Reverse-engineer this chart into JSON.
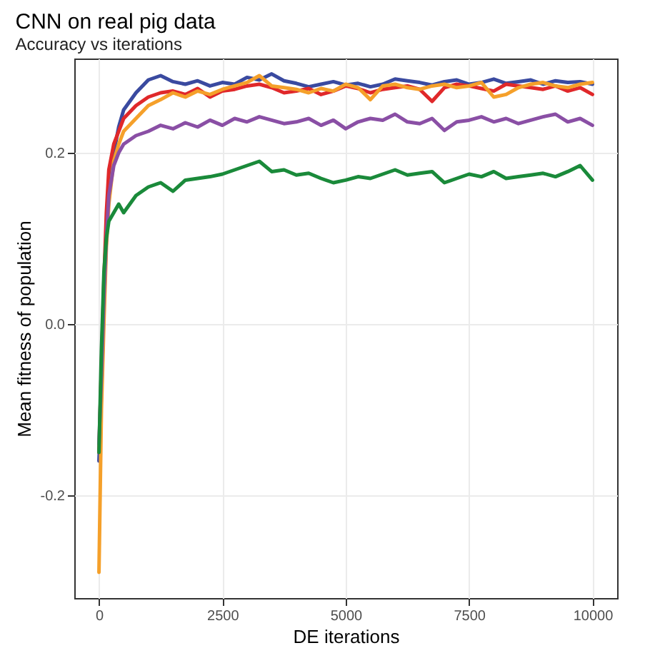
{
  "chart_data": {
    "type": "line",
    "title": "CNN on real pig data",
    "subtitle": "Accuracy vs iterations",
    "xlabel": "DE iterations",
    "ylabel": "Mean fitness of population",
    "x": [
      0,
      50,
      100,
      150,
      200,
      300,
      400,
      500,
      750,
      1000,
      1250,
      1500,
      1750,
      2000,
      2250,
      2500,
      2750,
      3000,
      3250,
      3500,
      3750,
      4000,
      4250,
      4500,
      4750,
      5000,
      5250,
      5500,
      5750,
      6000,
      6250,
      6500,
      6750,
      7000,
      7250,
      7500,
      7750,
      8000,
      8250,
      8500,
      8750,
      9000,
      9250,
      9500,
      9750,
      10000
    ],
    "series": [
      {
        "color": "#3a4aa0",
        "values": [
          -0.16,
          -0.08,
          0.02,
          0.1,
          0.15,
          0.2,
          0.23,
          0.25,
          0.27,
          0.285,
          0.29,
          0.283,
          0.28,
          0.284,
          0.278,
          0.282,
          0.28,
          0.288,
          0.285,
          0.292,
          0.284,
          0.281,
          0.277,
          0.28,
          0.283,
          0.279,
          0.281,
          0.277,
          0.28,
          0.286,
          0.284,
          0.282,
          0.279,
          0.283,
          0.285,
          0.28,
          0.282,
          0.286,
          0.281,
          0.283,
          0.285,
          0.28,
          0.284,
          0.282,
          0.283,
          0.28
        ]
      },
      {
        "color": "#e0282a",
        "values": [
          -0.15,
          -0.05,
          0.05,
          0.13,
          0.18,
          0.21,
          0.225,
          0.24,
          0.255,
          0.265,
          0.27,
          0.272,
          0.268,
          0.275,
          0.265,
          0.272,
          0.274,
          0.278,
          0.28,
          0.276,
          0.27,
          0.272,
          0.275,
          0.268,
          0.272,
          0.278,
          0.275,
          0.27,
          0.274,
          0.276,
          0.278,
          0.274,
          0.26,
          0.276,
          0.28,
          0.278,
          0.275,
          0.272,
          0.28,
          0.278,
          0.276,
          0.274,
          0.278,
          0.272,
          0.276,
          0.268
        ]
      },
      {
        "color": "#f5a02a",
        "values": [
          -0.29,
          -0.1,
          0.0,
          0.09,
          0.14,
          0.19,
          0.21,
          0.225,
          0.24,
          0.255,
          0.262,
          0.27,
          0.265,
          0.272,
          0.268,
          0.274,
          0.278,
          0.282,
          0.29,
          0.278,
          0.276,
          0.274,
          0.27,
          0.275,
          0.272,
          0.28,
          0.276,
          0.262,
          0.278,
          0.28,
          0.276,
          0.274,
          0.278,
          0.28,
          0.276,
          0.278,
          0.282,
          0.265,
          0.268,
          0.276,
          0.28,
          0.282,
          0.278,
          0.276,
          0.28,
          0.282
        ]
      },
      {
        "color": "#8a4fa5",
        "values": [
          -0.14,
          -0.06,
          0.03,
          0.1,
          0.15,
          0.185,
          0.2,
          0.21,
          0.22,
          0.225,
          0.232,
          0.228,
          0.235,
          0.23,
          0.238,
          0.232,
          0.24,
          0.236,
          0.242,
          0.238,
          0.234,
          0.236,
          0.24,
          0.232,
          0.238,
          0.228,
          0.236,
          0.24,
          0.238,
          0.245,
          0.236,
          0.234,
          0.24,
          0.226,
          0.236,
          0.238,
          0.242,
          0.236,
          0.24,
          0.234,
          0.238,
          0.242,
          0.245,
          0.236,
          0.24,
          0.232
        ]
      },
      {
        "color": "#1a8a3a",
        "values": [
          -0.15,
          -0.03,
          0.06,
          0.1,
          0.12,
          0.13,
          0.14,
          0.13,
          0.15,
          0.16,
          0.165,
          0.155,
          0.168,
          0.17,
          0.172,
          0.175,
          0.18,
          0.185,
          0.19,
          0.178,
          0.18,
          0.174,
          0.176,
          0.17,
          0.165,
          0.168,
          0.172,
          0.17,
          0.175,
          0.18,
          0.174,
          0.176,
          0.178,
          0.165,
          0.17,
          0.175,
          0.172,
          0.178,
          0.17,
          0.172,
          0.174,
          0.176,
          0.172,
          0.178,
          0.185,
          0.168
        ]
      }
    ],
    "xlim": [
      -500,
      10500
    ],
    "xticks": [
      0,
      2500,
      5000,
      7500,
      10000
    ],
    "ylim": [
      -0.32,
      0.31
    ],
    "yticks": [
      {
        "value": -0.2,
        "label": "-0.2"
      },
      {
        "value": 0,
        "label": "0.0"
      },
      {
        "value": 0.2,
        "label": "0.2"
      }
    ],
    "grid": true,
    "legend": false,
    "marker": "none",
    "line_style": "solid"
  }
}
